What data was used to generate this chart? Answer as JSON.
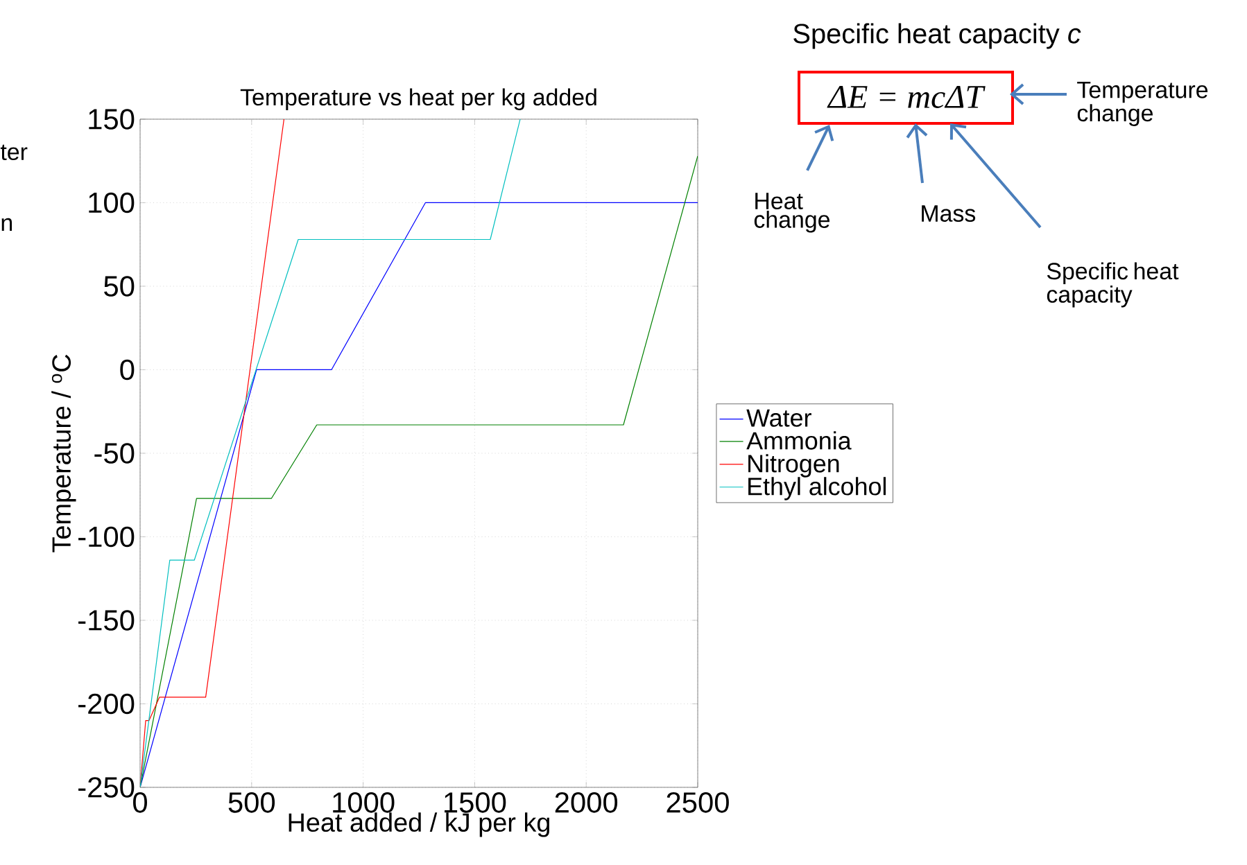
{
  "chart_data": {
    "type": "line",
    "title": "Temperature vs heat per kg added",
    "xlabel": "Heat added / kJ per kg",
    "ylabel": "Temperature / $^{o}$C",
    "series": [
      {
        "name": "Water",
        "color": "#0000ff",
        "x": [
          0,
          522,
          858,
          1279,
          2500
        ],
        "values": [
          -250,
          0,
          0,
          100,
          100
        ]
      },
      {
        "name": "Ammonia",
        "color": "#008000",
        "x": [
          0,
          253,
          589,
          792,
          2167,
          2500
        ],
        "values": [
          -250,
          -77,
          -77,
          -33,
          -33,
          128
        ]
      },
      {
        "name": "Nitrogen",
        "color": "#ff0000",
        "x": [
          0,
          25,
          40,
          87,
          294,
          645
        ],
        "values": [
          -250,
          -210,
          -210,
          -196,
          -196,
          150
        ]
      },
      {
        "name": "Ethyl alcohol",
        "color": "#00bfbf",
        "x": [
          0,
          133,
          243,
          709,
          1570,
          1704
        ],
        "values": [
          -250,
          -114,
          -114,
          78,
          78,
          150
        ]
      }
    ],
    "xlim": [
      0,
      2500
    ],
    "xticks": [
      0,
      500,
      1000,
      1500,
      2000,
      2500
    ],
    "ylim": [
      -250,
      150
    ],
    "yticks": [
      -250,
      -200,
      -150,
      -100,
      -50,
      0,
      50,
      100,
      150
    ],
    "grid": true,
    "legend": "right",
    "marker": "none",
    "line_style": "solid",
    "annotations": [
      "Specific heat capacity *c*",
      "ΔE = mcΔT",
      "Temperature change",
      "Heat change",
      "Mass",
      "Specific heat capacity",
      "ter",
      "n"
    ]
  }
}
